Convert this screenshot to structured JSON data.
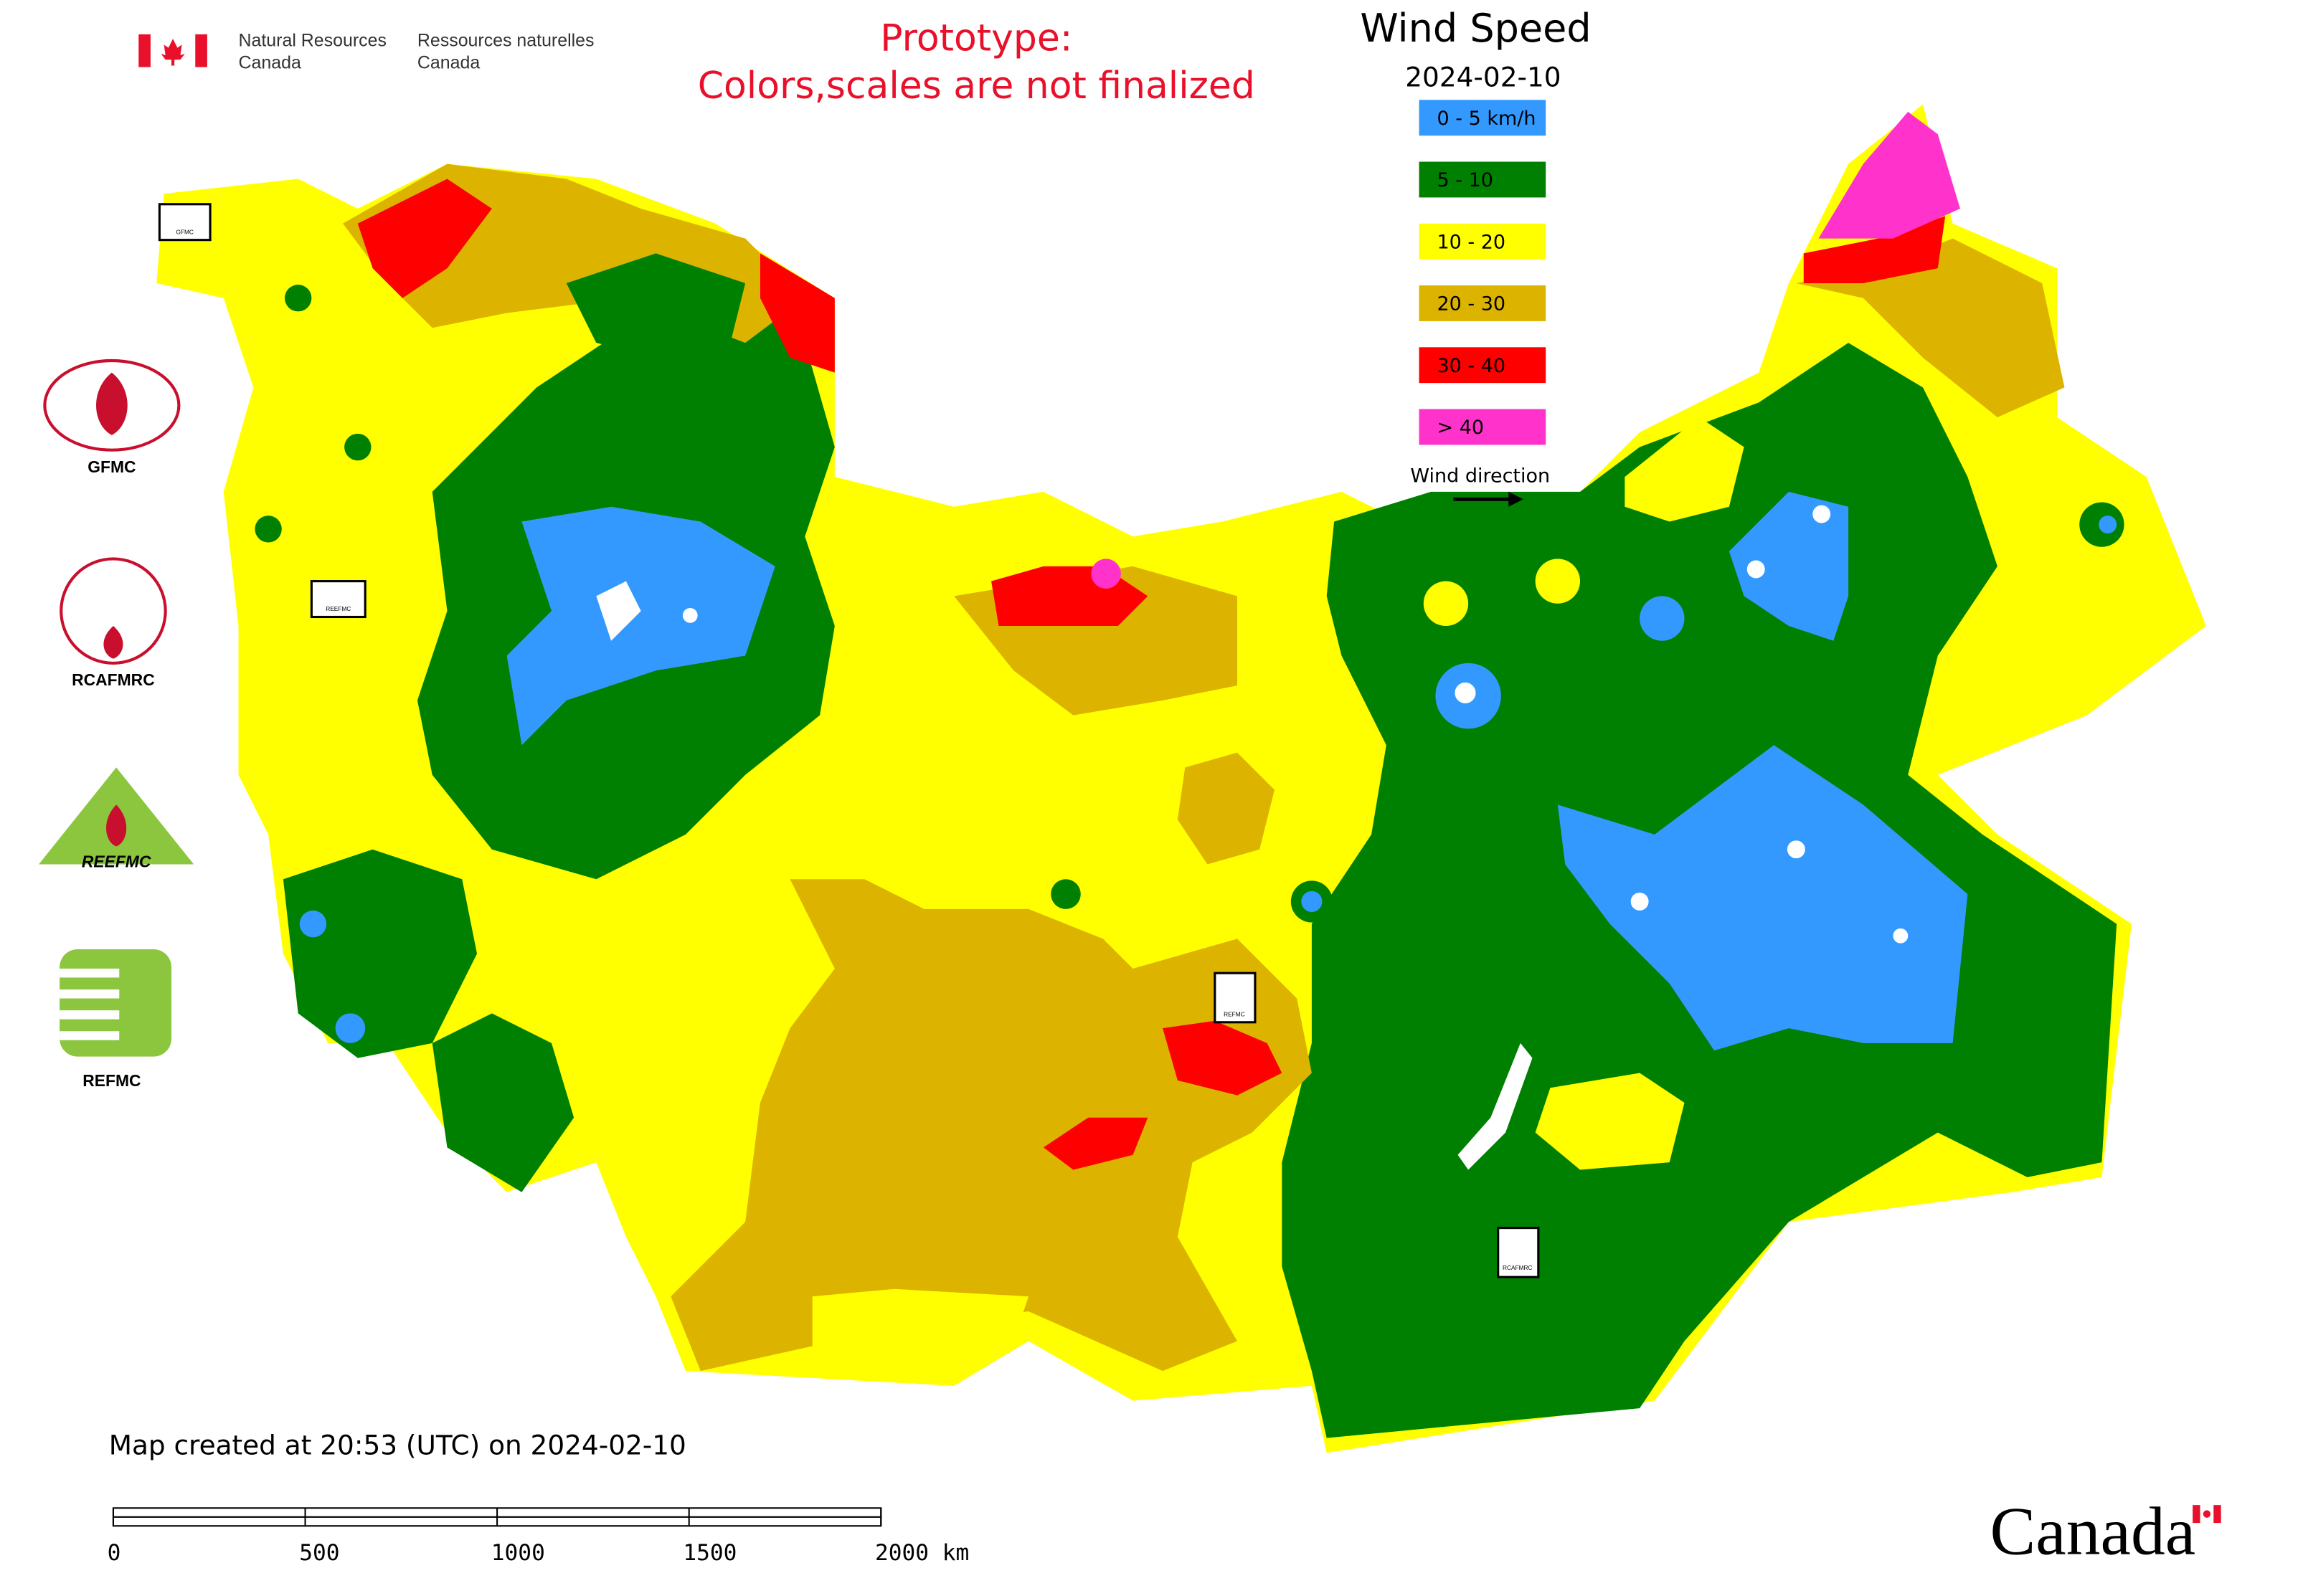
{
  "header": {
    "en": [
      "Natural Resources",
      "Canada"
    ],
    "fr": [
      "Ressources naturelles",
      "Canada"
    ]
  },
  "notice": [
    "Prototype:",
    "Colors,scales are not finalized"
  ],
  "legend": {
    "title": "Wind Speed",
    "date": "2024-02-10",
    "items": [
      {
        "label": "0 - 5 km/h",
        "color": "#3399ff"
      },
      {
        "label": "5 - 10",
        "color": "#008000"
      },
      {
        "label": "10 - 20",
        "color": "#ffff00"
      },
      {
        "label": "20 - 30",
        "color": "#dcb400"
      },
      {
        "label": "30 - 40",
        "color": "#ff0000"
      },
      {
        "label": "> 40",
        "color": "#ff33cc"
      }
    ],
    "arrow_label": "Wind direction"
  },
  "logos": [
    {
      "label": "GFMC"
    },
    {
      "label": "RCAFMRC"
    },
    {
      "label": "REEFMC"
    },
    {
      "label": "REFMC"
    }
  ],
  "footer": {
    "created": "Map created at 20:53 (UTC) on 2024-02-10",
    "scale_labels": [
      "0",
      "500",
      "1000",
      "1500",
      "2000 km"
    ],
    "wordmark": "Canada"
  }
}
